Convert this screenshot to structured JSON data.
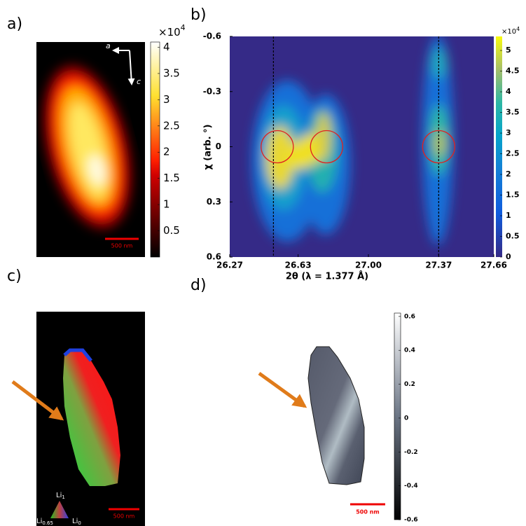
{
  "chart_data": [
    {
      "type": "image",
      "panel_label": "a)",
      "axis_labels": [
        "a",
        "c"
      ],
      "scale_bar": "500 nm",
      "colorbar": {
        "multiplier": "×10",
        "exponent": "4",
        "lim": [
          0,
          4.1
        ],
        "ticks": [
          0.5,
          1,
          1.5,
          2,
          2.5,
          3,
          3.5,
          4
        ]
      }
    },
    {
      "type": "heatmap",
      "panel_label": "b)",
      "xlabel": "2θ (λ = 1.377 Å)",
      "ylabel": "χ (arb. °)",
      "xlim": [
        26.27,
        27.66
      ],
      "xticks": [
        26.27,
        26.63,
        {
          "value": 27,
          "label": "27.00"
        },
        27.37,
        27.66
      ],
      "ylim": [
        0.6,
        -0.6
      ],
      "yticks": [
        -0.6,
        -0.3,
        0,
        0.3,
        0.6
      ],
      "vlines": [
        26.5,
        27.37
      ],
      "circles": [
        {
          "x": 26.52,
          "y": 0
        },
        {
          "x": 26.78,
          "y": 0
        },
        {
          "x": 27.37,
          "y": 0
        }
      ],
      "colorbar": {
        "multiplier": "×10",
        "exponent": "4",
        "lim": [
          0,
          5.34
        ],
        "ticks": [
          0,
          0.5,
          1,
          1.5,
          2,
          2.5,
          3,
          3.5,
          4,
          4.5,
          5
        ]
      }
    },
    {
      "type": "image",
      "panel_label": "c)",
      "scale_bar": "500 nm",
      "legend_labels": [
        {
          "base": "Li",
          "sub": "1"
        },
        {
          "base": "Li",
          "sub": "0.65"
        },
        {
          "base": "Li",
          "sub": "0"
        }
      ]
    },
    {
      "type": "image",
      "panel_label": "d)",
      "scale_bar": "500 nm",
      "colorbar": {
        "lim": [
          -0.6,
          0.62
        ],
        "ticks": [
          0.6,
          0.4,
          0.2,
          0,
          -0.2,
          -0.4,
          -0.6
        ]
      }
    }
  ]
}
